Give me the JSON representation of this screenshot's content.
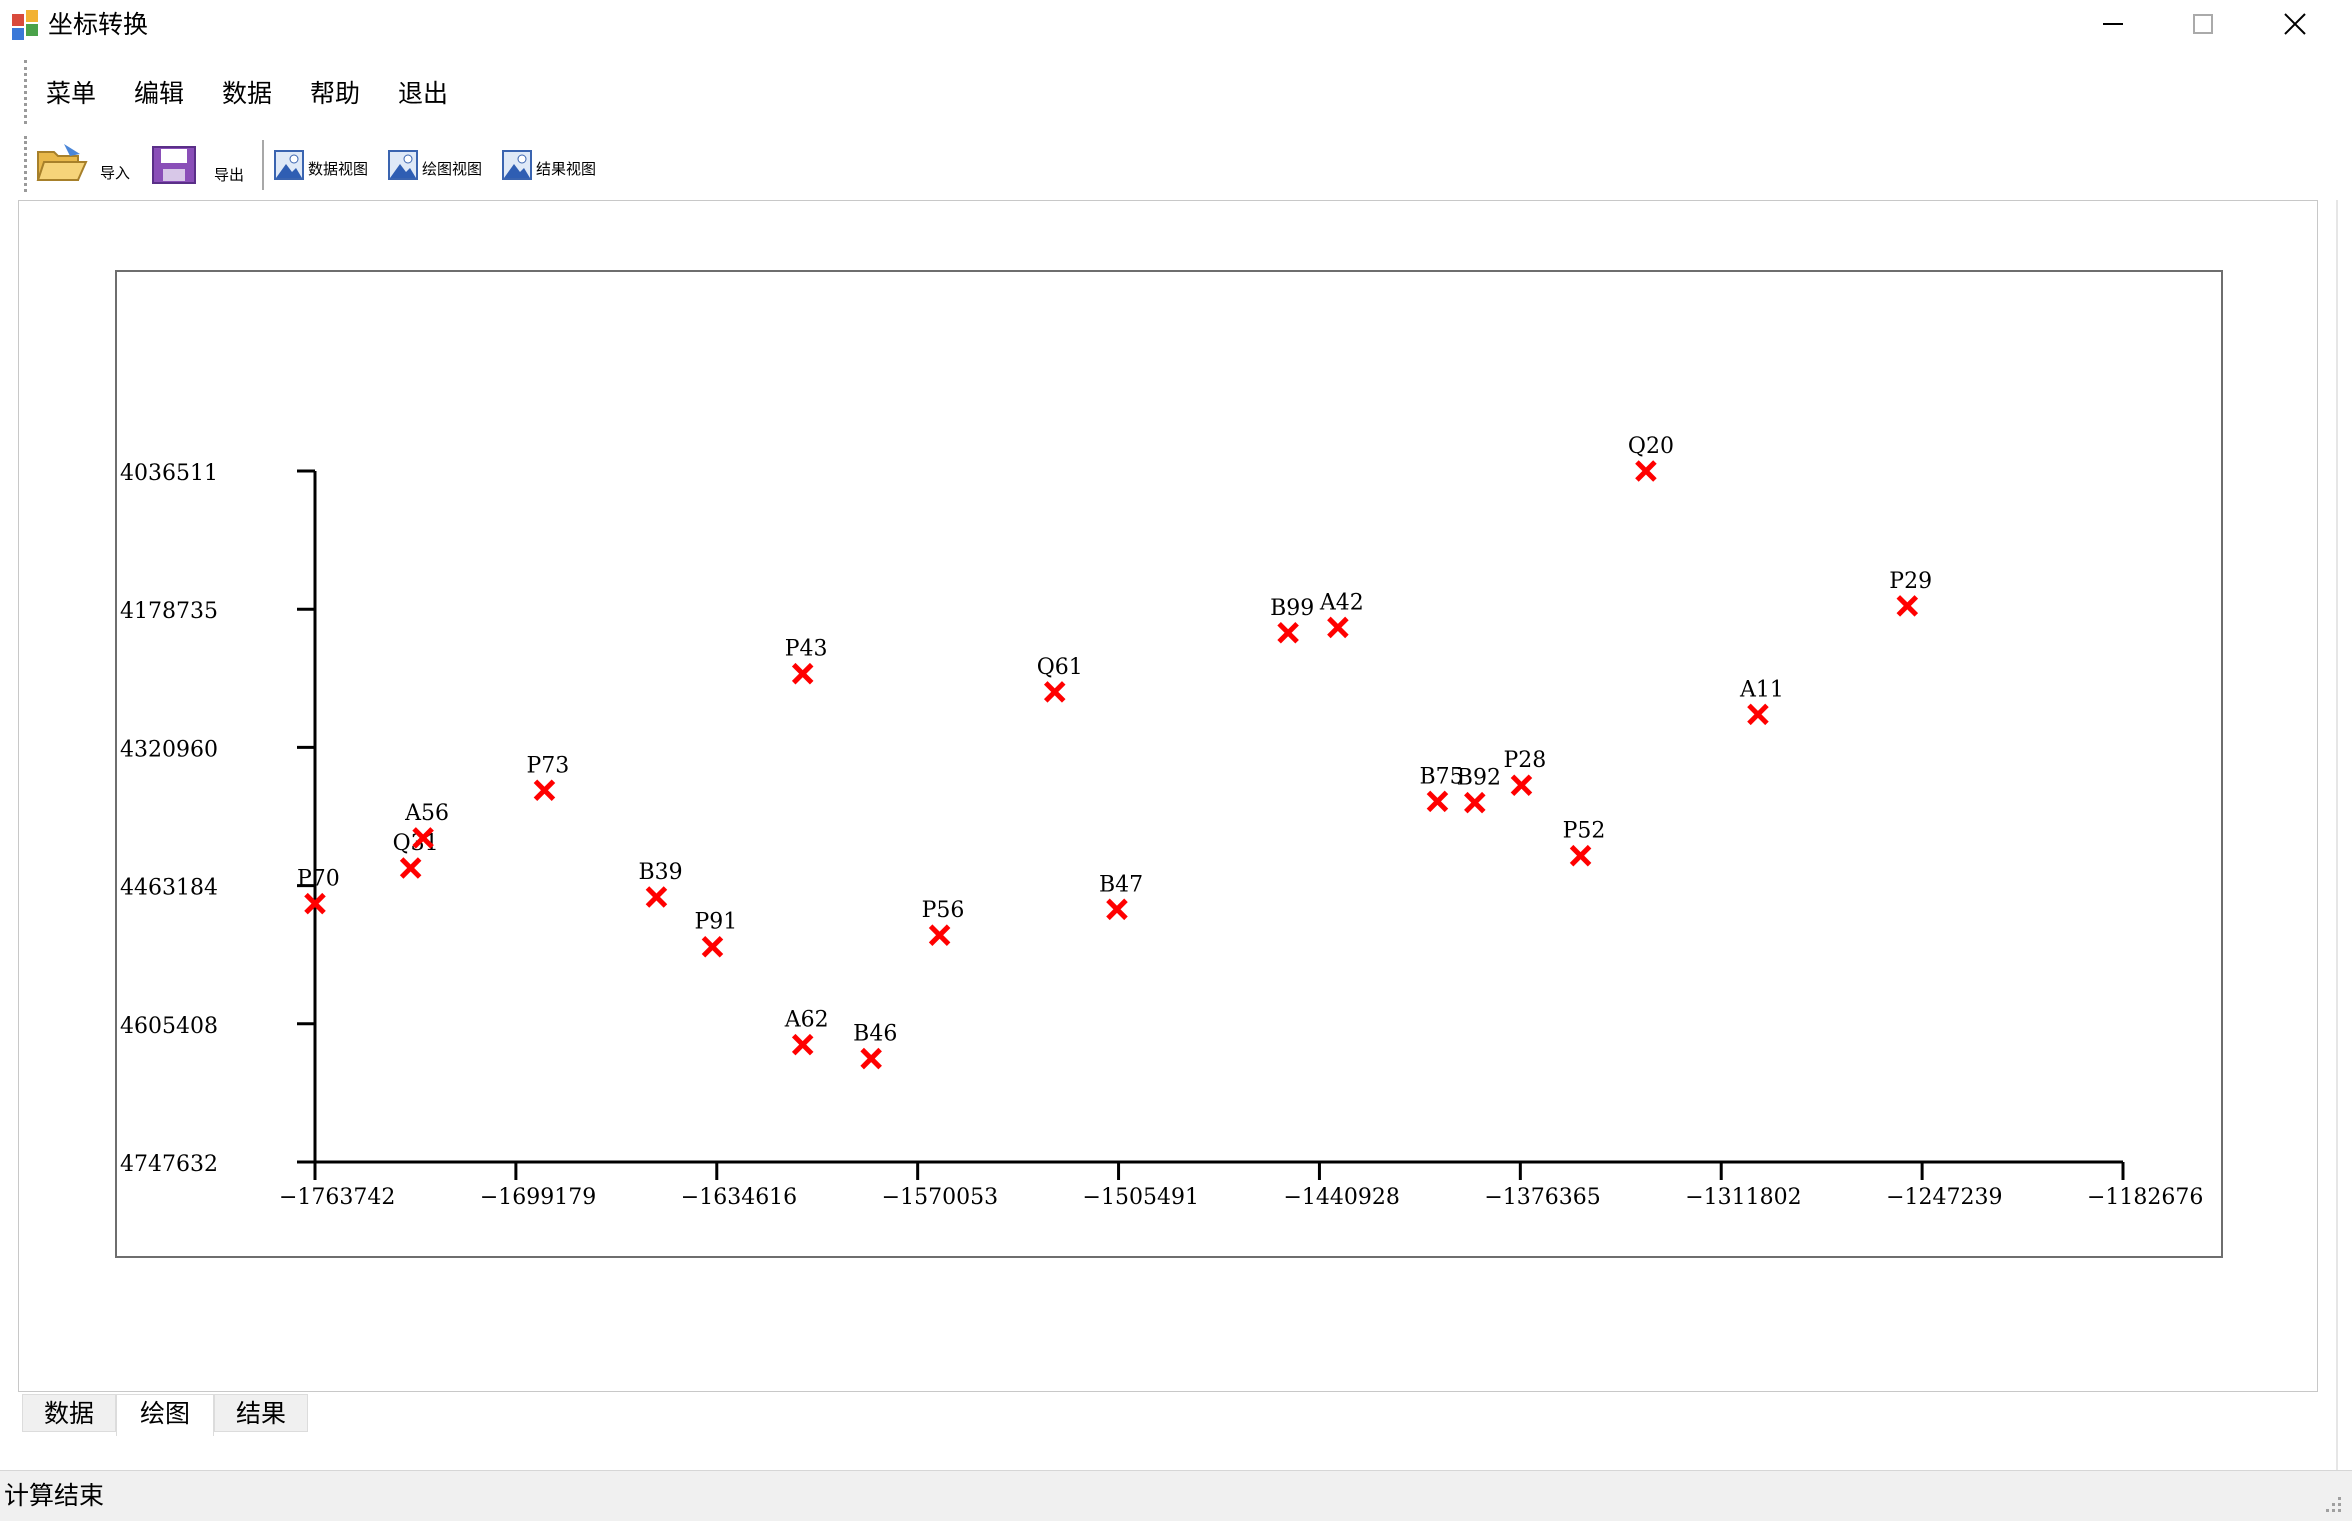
{
  "window": {
    "title": "坐标转换",
    "controls": {
      "minimize": "minimize",
      "maximize": "maximize",
      "close": "close"
    }
  },
  "menu": {
    "items": [
      {
        "label": "菜单"
      },
      {
        "label": "编辑"
      },
      {
        "label": "数据"
      },
      {
        "label": "帮助"
      },
      {
        "label": "退出"
      }
    ]
  },
  "toolbar": {
    "import_label": "导入",
    "export_label": "导出",
    "data_view_label": "数据视图",
    "plot_view_label": "绘图视图",
    "result_view_label": "结果视图"
  },
  "tabs": {
    "items": [
      {
        "label": "数据",
        "active": false
      },
      {
        "label": "绘图",
        "active": true
      },
      {
        "label": "结果",
        "active": false
      }
    ]
  },
  "status": {
    "text": "计算结束"
  },
  "chart_data": {
    "type": "scatter",
    "title": "",
    "xlabel": "",
    "ylabel": "",
    "x_ticks": [
      -1763742,
      -1699179,
      -1634616,
      -1570053,
      -1505491,
      -1440928,
      -1376365,
      -1311802,
      -1247239,
      -1182676
    ],
    "y_ticks": [
      4036511,
      4178735,
      4320960,
      4463184,
      4605408,
      4747632
    ],
    "xlim": [
      -1763742,
      -1182676
    ],
    "ylim": [
      4036511,
      4747632
    ],
    "y_inverted": true,
    "marker": "x",
    "marker_color": "#ff0000",
    "grid": false,
    "points": [
      {
        "name": "P70",
        "x": -1763742,
        "y": 4481700
      },
      {
        "name": "Q31",
        "x": -1733000,
        "y": 4445100
      },
      {
        "name": "A56",
        "x": -1729000,
        "y": 4414100
      },
      {
        "name": "P73",
        "x": -1690000,
        "y": 4365100
      },
      {
        "name": "B39",
        "x": -1654000,
        "y": 4474900
      },
      {
        "name": "P91",
        "x": -1636000,
        "y": 4526100
      },
      {
        "name": "P43",
        "x": -1607000,
        "y": 4245100
      },
      {
        "name": "A62",
        "x": -1607000,
        "y": 4626800
      },
      {
        "name": "B46",
        "x": -1585000,
        "y": 4641200
      },
      {
        "name": "P56",
        "x": -1563000,
        "y": 4514200
      },
      {
        "name": "Q61",
        "x": -1526000,
        "y": 4263800
      },
      {
        "name": "B47",
        "x": -1506000,
        "y": 4487600
      },
      {
        "name": "B99",
        "x": -1451000,
        "y": 4203000
      },
      {
        "name": "A42",
        "x": -1435000,
        "y": 4197500
      },
      {
        "name": "B75",
        "x": -1403000,
        "y": 4376500
      },
      {
        "name": "B92",
        "x": -1391000,
        "y": 4377800
      },
      {
        "name": "P28",
        "x": -1376000,
        "y": 4359900
      },
      {
        "name": "P52",
        "x": -1357000,
        "y": 4432400
      },
      {
        "name": "Q20",
        "x": -1336000,
        "y": 4036511
      },
      {
        "name": "A11",
        "x": -1300000,
        "y": 4287000
      },
      {
        "name": "P29",
        "x": -1252000,
        "y": 4175300
      }
    ]
  }
}
